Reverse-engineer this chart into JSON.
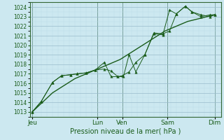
{
  "title": "Pression niveau de la mer( hPa )",
  "bg_color": "#cce8f0",
  "grid_color_major": "#99bbcc",
  "grid_color_minor": "#bbdde8",
  "line_color": "#1a5c1a",
  "spine_color": "#336633",
  "ylim": [
    1012.5,
    1024.5
  ],
  "yticks": [
    1013,
    1014,
    1015,
    1016,
    1017,
    1018,
    1019,
    1020,
    1021,
    1022,
    1023,
    1024
  ],
  "xlim": [
    0,
    8.5
  ],
  "day_labels": [
    "Jeu",
    "Lun",
    "Ven",
    "Sam",
    "Dim"
  ],
  "day_positions": [
    0.1,
    3.0,
    4.1,
    6.1,
    8.2
  ],
  "vline_positions": [
    0.1,
    3.0,
    4.1,
    6.1,
    8.2
  ],
  "line1_x": [
    0.1,
    0.5,
    1.0,
    1.4,
    1.8,
    2.1,
    2.5,
    2.9,
    3.3,
    3.6,
    3.9,
    4.1,
    4.4,
    4.7,
    5.1,
    5.5,
    5.9,
    6.2,
    6.5,
    6.9,
    7.2,
    7.6,
    8.0,
    8.2
  ],
  "line1_y": [
    1013.0,
    1014.1,
    1016.1,
    1016.8,
    1016.9,
    1017.0,
    1017.1,
    1017.4,
    1017.5,
    1017.3,
    1016.7,
    1016.8,
    1017.2,
    1018.2,
    1019.0,
    1021.3,
    1021.2,
    1021.5,
    1023.3,
    1024.1,
    1023.5,
    1023.2,
    1023.0,
    1023.2
  ],
  "line2_x": [
    0.1,
    0.5,
    1.0,
    1.4,
    1.8,
    2.1,
    2.5,
    2.9,
    3.3,
    3.6,
    3.9,
    4.15,
    4.4,
    4.7,
    5.1,
    5.5,
    5.9,
    6.2,
    6.5,
    6.9,
    7.2,
    7.6,
    8.0,
    8.2
  ],
  "line2_y": [
    1013.0,
    1014.1,
    1016.1,
    1016.8,
    1016.9,
    1017.0,
    1017.1,
    1017.4,
    1018.2,
    1016.7,
    1016.7,
    1016.7,
    1019.0,
    1017.2,
    1019.0,
    1021.2,
    1021.1,
    1023.7,
    1023.3,
    1024.1,
    1023.5,
    1023.0,
    1023.2,
    1023.2
  ],
  "line3_x": [
    0.1,
    1.0,
    2.0,
    3.0,
    4.0,
    5.0,
    6.0,
    7.0,
    8.2
  ],
  "line3_y": [
    1013.0,
    1015.0,
    1016.5,
    1017.5,
    1018.5,
    1020.0,
    1021.5,
    1022.5,
    1023.2
  ],
  "marker": "^",
  "marker_size": 2.5,
  "title_fontsize": 7,
  "tick_fontsize": 5.5,
  "xlabel_fontsize": 6.5
}
